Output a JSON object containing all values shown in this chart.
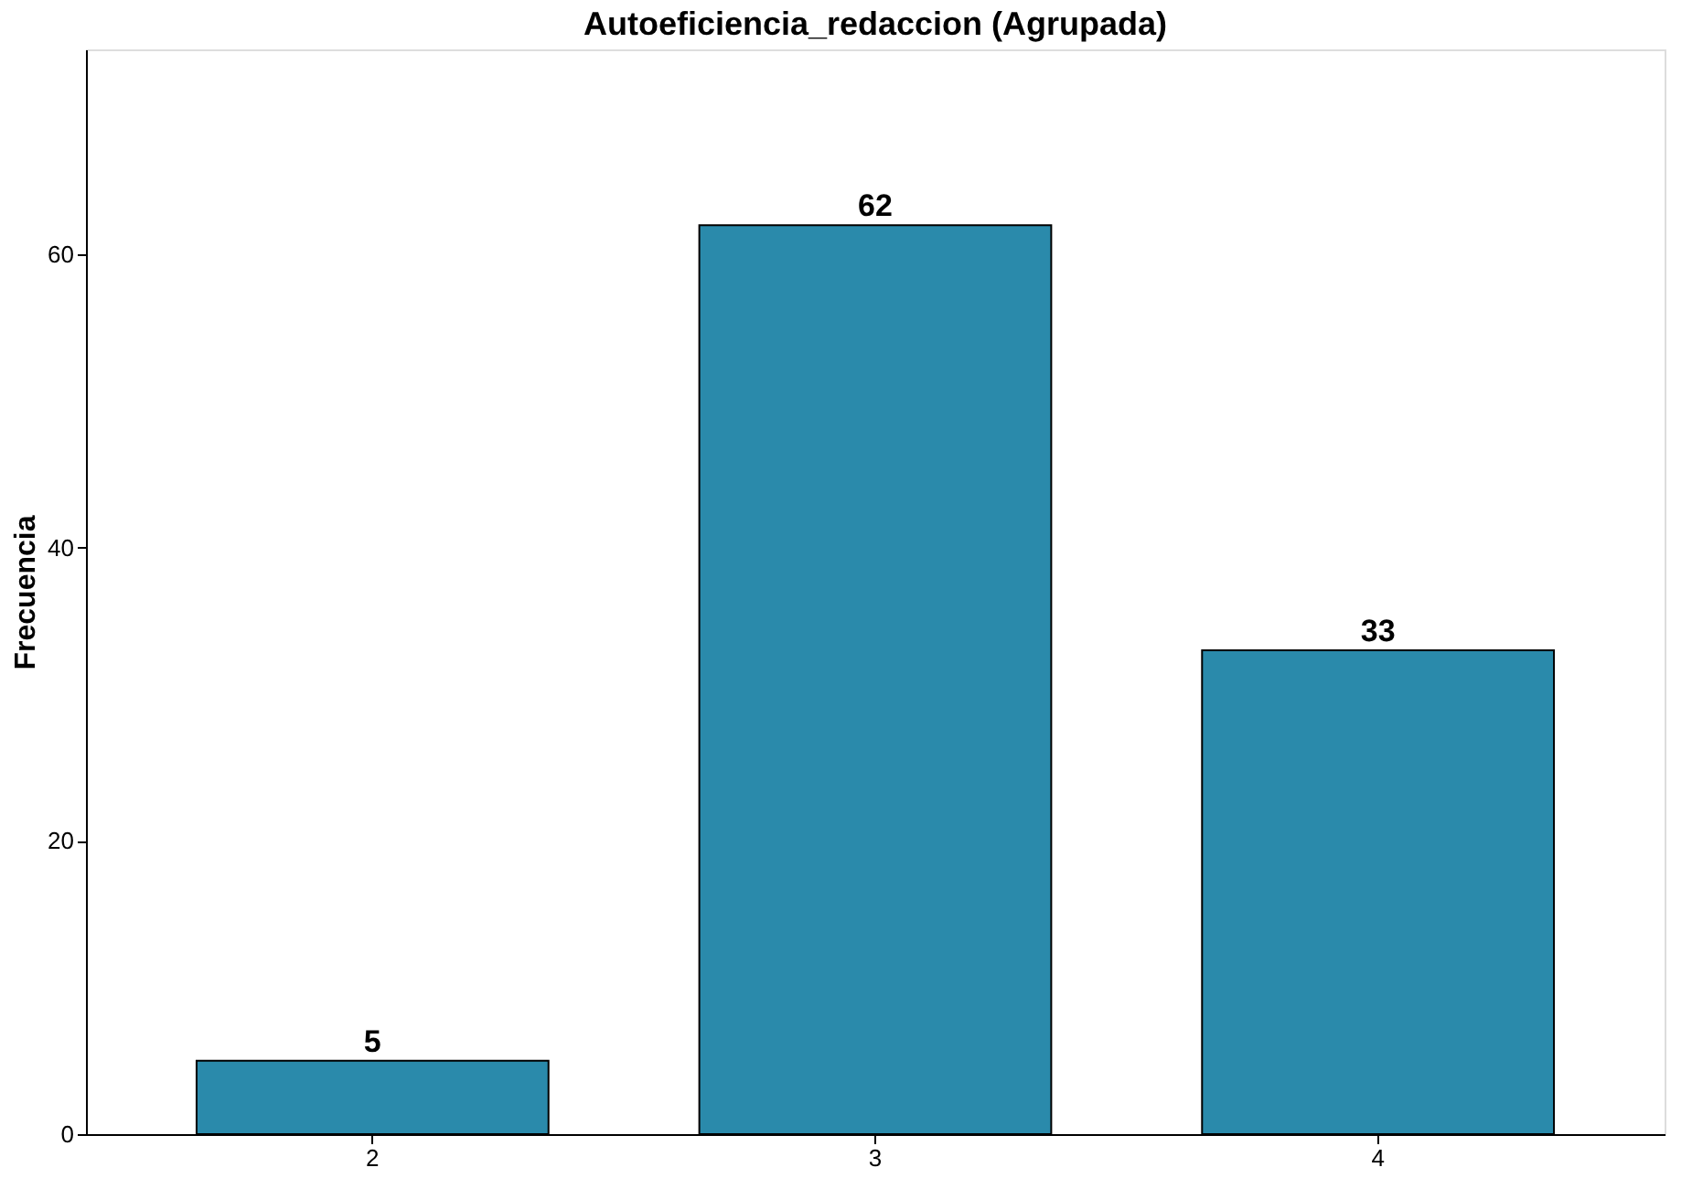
{
  "chart_data": {
    "type": "bar",
    "title": "Autoeficiencia_redaccion (Agrupada)",
    "ylabel": "Frecuencia",
    "categories": [
      "2",
      "3",
      "4"
    ],
    "values": [
      5,
      62,
      33
    ],
    "color": "#2a8aab",
    "ylim": [
      0,
      74
    ],
    "yticks": [
      0,
      20,
      40,
      60
    ],
    "data_labels": true,
    "grid": false
  }
}
